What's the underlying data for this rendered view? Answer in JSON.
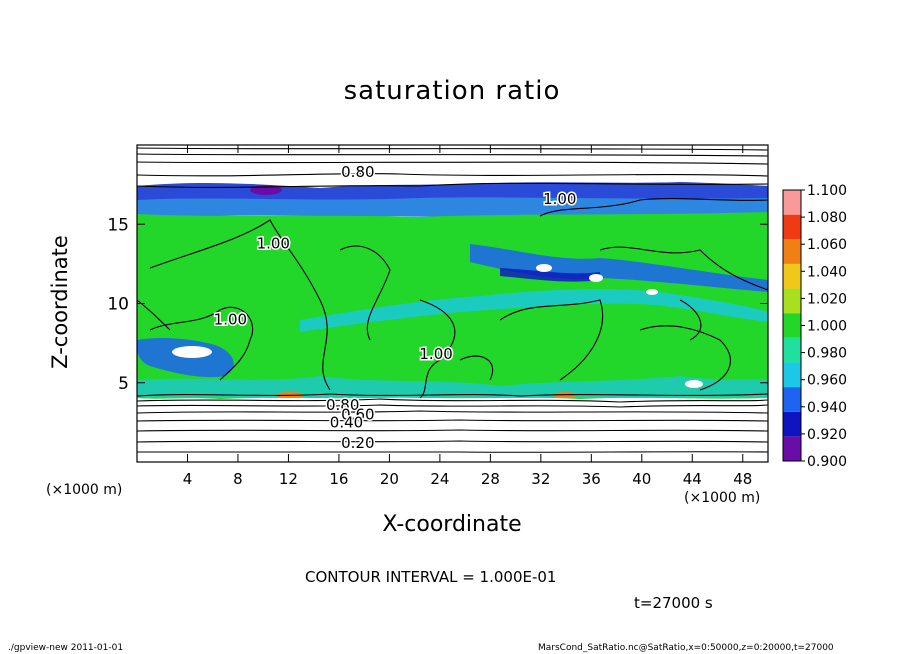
{
  "chart_data": {
    "type": "heatmap",
    "title": "saturation ratio",
    "xlabel": "X-coordinate",
    "ylabel": "Z-coordinate",
    "x_unit": "(×1000 m)",
    "y_unit": "(×1000 m)",
    "xlim": [
      0,
      50
    ],
    "ylim": [
      0,
      20
    ],
    "x_ticks": [
      4,
      8,
      12,
      16,
      20,
      24,
      28,
      32,
      36,
      40,
      44,
      48
    ],
    "y_ticks": [
      5,
      10,
      15
    ],
    "colorbar": {
      "levels": [
        "0.900",
        "0.920",
        "0.940",
        "0.960",
        "0.980",
        "1.000",
        "1.020",
        "1.040",
        "1.060",
        "1.080",
        "1.100"
      ],
      "colors": [
        "#6a0ca8",
        "#0d14c0",
        "#1e64f0",
        "#1cc8e6",
        "#20e0a0",
        "#22d62a",
        "#a8e020",
        "#f0c81a",
        "#f08014",
        "#f03a14",
        "#f89a9a"
      ]
    },
    "contour_labels": [
      {
        "text": "0.80",
        "x": 17.5,
        "z": 18.3
      },
      {
        "text": "1.00",
        "x": 33.5,
        "z": 16.6
      },
      {
        "text": "1.00",
        "x": 10.8,
        "z": 13.8
      },
      {
        "text": "1.00",
        "x": 7.4,
        "z": 9.0
      },
      {
        "text": "1.00",
        "x": 23.7,
        "z": 6.8
      },
      {
        "text": "0.80",
        "x": 16.3,
        "z": 3.6
      },
      {
        "text": "0.60",
        "x": 17.5,
        "z": 3.0
      },
      {
        "text": "0.40",
        "x": 16.6,
        "z": 2.5
      },
      {
        "text": "0.20",
        "x": 17.5,
        "z": 1.2
      }
    ],
    "contour_interval_text": "CONTOUR INTERVAL = 1.000E-01",
    "time_text": "t=27000 s"
  },
  "footer": {
    "left": "./gpview-new   2011-01-01",
    "right": "MarsCond_SatRatio.nc@SatRatio,x=0:50000,z=0:20000,t=27000"
  }
}
